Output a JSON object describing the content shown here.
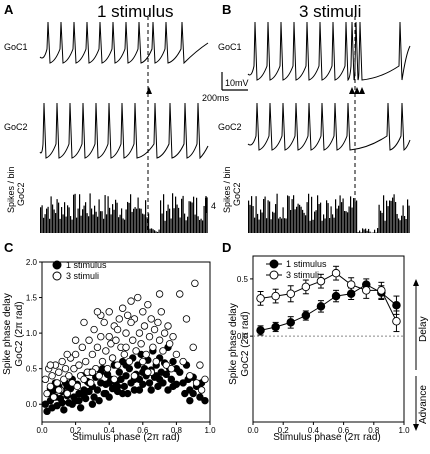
{
  "panels": {
    "A": {
      "label": "A",
      "title": "1 stimulus"
    },
    "B": {
      "label": "B",
      "title": "3 stimuli"
    },
    "C": {
      "label": "C"
    },
    "D": {
      "label": "D"
    }
  },
  "trace_labels": {
    "goc1": "GoC1",
    "goc2": "GoC2",
    "spikes_a": "Spikes / bin",
    "spikes_b": "GoC2"
  },
  "scale_bars": {
    "voltage": "10mV",
    "time": "200ms",
    "count": "4"
  },
  "colors": {
    "trace": "#000000",
    "open_marker": "#ffffff",
    "filled_marker": "#000000",
    "zero_line": "#888888"
  },
  "chart_data": [
    {
      "panel": "C",
      "type": "scatter",
      "xlabel": "Stimulus phase (2π rad)",
      "ylabel_line1": "Spike phase delay",
      "ylabel_line2": "GoC2 (2π rad)",
      "xlim": [
        0.0,
        1.0
      ],
      "ylim": [
        -0.25,
        2.0
      ],
      "xticks": [
        "0.0",
        "0.2",
        "0.4",
        "0.6",
        "0.8",
        "1.0"
      ],
      "yticks": [
        "0.0",
        "0.5",
        "1.0",
        "1.5",
        "2.0"
      ],
      "legend_placement": "top-left",
      "series": [
        {
          "name": "1 stimulus",
          "marker": "filled",
          "points": [
            [
              0.02,
              0.0
            ],
            [
              0.03,
              -0.1
            ],
            [
              0.04,
              0.15
            ],
            [
              0.05,
              0.05
            ],
            [
              0.06,
              -0.05
            ],
            [
              0.07,
              0.2
            ],
            [
              0.08,
              0.1
            ],
            [
              0.09,
              -0.02
            ],
            [
              0.1,
              0.25
            ],
            [
              0.11,
              0.08
            ],
            [
              0.12,
              0.18
            ],
            [
              0.13,
              -0.08
            ],
            [
              0.14,
              0.3
            ],
            [
              0.15,
              0.12
            ],
            [
              0.16,
              0.02
            ],
            [
              0.17,
              0.22
            ],
            [
              0.18,
              0.35
            ],
            [
              0.19,
              0.1
            ],
            [
              0.2,
              0.05
            ],
            [
              0.21,
              0.28
            ],
            [
              0.22,
              0.15
            ],
            [
              0.23,
              -0.05
            ],
            [
              0.24,
              0.4
            ],
            [
              0.25,
              0.2
            ],
            [
              0.26,
              0.08
            ],
            [
              0.27,
              0.32
            ],
            [
              0.28,
              0.18
            ],
            [
              0.29,
              0.45
            ],
            [
              0.3,
              0.25
            ],
            [
              0.31,
              0.1
            ],
            [
              0.32,
              0.38
            ],
            [
              0.33,
              0.2
            ],
            [
              0.34,
              0.05
            ],
            [
              0.35,
              0.3
            ],
            [
              0.36,
              0.5
            ],
            [
              0.37,
              0.15
            ],
            [
              0.38,
              0.28
            ],
            [
              0.39,
              0.42
            ],
            [
              0.4,
              0.1
            ],
            [
              0.41,
              0.35
            ],
            [
              0.42,
              0.22
            ],
            [
              0.43,
              0.55
            ],
            [
              0.44,
              0.3
            ],
            [
              0.45,
              0.18
            ],
            [
              0.46,
              0.45
            ],
            [
              0.47,
              0.35
            ],
            [
              0.48,
              0.6
            ],
            [
              0.49,
              0.25
            ],
            [
              0.5,
              0.4
            ],
            [
              0.51,
              0.15
            ],
            [
              0.52,
              0.5
            ],
            [
              0.53,
              0.3
            ],
            [
              0.54,
              0.65
            ],
            [
              0.55,
              0.2
            ],
            [
              0.56,
              0.42
            ],
            [
              0.57,
              0.55
            ],
            [
              0.58,
              0.35
            ],
            [
              0.59,
              0.7
            ],
            [
              0.6,
              0.28
            ],
            [
              0.61,
              0.5
            ],
            [
              0.62,
              0.4
            ],
            [
              0.63,
              0.62
            ],
            [
              0.64,
              0.3
            ],
            [
              0.65,
              0.48
            ],
            [
              0.66,
              0.75
            ],
            [
              0.67,
              0.38
            ],
            [
              0.68,
              0.55
            ],
            [
              0.69,
              0.25
            ],
            [
              0.7,
              0.65
            ],
            [
              0.71,
              0.45
            ],
            [
              0.72,
              0.3
            ],
            [
              0.73,
              0.58
            ],
            [
              0.74,
              0.42
            ],
            [
              0.75,
              0.2
            ],
            [
              0.76,
              0.5
            ],
            [
              0.77,
              0.35
            ],
            [
              0.78,
              0.6
            ],
            [
              0.8,
              0.28
            ],
            [
              0.82,
              0.45
            ],
            [
              0.84,
              0.3
            ],
            [
              0.85,
              0.15
            ],
            [
              0.87,
              0.35
            ],
            [
              0.88,
              0.2
            ],
            [
              0.9,
              0.38
            ],
            [
              0.92,
              0.25
            ],
            [
              0.94,
              0.1
            ],
            [
              0.95,
              0.3
            ],
            [
              0.97,
              0.05
            ],
            [
              0.15,
              0.25
            ],
            [
              0.25,
              0.12
            ],
            [
              0.35,
              0.45
            ],
            [
              0.45,
              0.25
            ],
            [
              0.55,
              0.35
            ],
            [
              0.65,
              0.2
            ],
            [
              0.08,
              0.3
            ],
            [
              0.12,
              0.02
            ],
            [
              0.22,
              0.05
            ],
            [
              0.3,
              0.0
            ],
            [
              0.4,
              0.3
            ],
            [
              0.5,
              0.55
            ],
            [
              0.6,
              0.45
            ],
            [
              0.7,
              0.35
            ],
            [
              0.75,
              0.8
            ],
            [
              0.8,
              0.5
            ],
            [
              0.86,
              0.55
            ],
            [
              0.9,
              0.15
            ],
            [
              0.05,
              0.22
            ],
            [
              0.18,
              0.0
            ],
            [
              0.28,
              0.3
            ],
            [
              0.38,
              0.15
            ],
            [
              0.48,
              0.15
            ],
            [
              0.58,
              0.2
            ],
            [
              0.68,
              0.4
            ],
            [
              0.78,
              0.25
            ],
            [
              0.88,
              0.05
            ]
          ]
        },
        {
          "name": "3 stimuli",
          "marker": "open",
          "points": [
            [
              0.02,
              0.35
            ],
            [
              0.03,
              0.15
            ],
            [
              0.04,
              0.5
            ],
            [
              0.05,
              0.25
            ],
            [
              0.06,
              0.4
            ],
            [
              0.07,
              0.1
            ],
            [
              0.08,
              0.55
            ],
            [
              0.09,
              0.3
            ],
            [
              0.1,
              0.45
            ],
            [
              0.11,
              0.2
            ],
            [
              0.12,
              0.6
            ],
            [
              0.13,
              0.35
            ],
            [
              0.14,
              0.5
            ],
            [
              0.15,
              0.15
            ],
            [
              0.16,
              0.4
            ],
            [
              0.17,
              0.65
            ],
            [
              0.18,
              0.3
            ],
            [
              0.19,
              0.5
            ],
            [
              0.2,
              0.7
            ],
            [
              0.21,
              0.25
            ],
            [
              0.22,
              0.55
            ],
            [
              0.23,
              0.4
            ],
            [
              0.24,
              0.8
            ],
            [
              0.25,
              0.35
            ],
            [
              0.26,
              0.6
            ],
            [
              0.27,
              0.45
            ],
            [
              0.28,
              0.9
            ],
            [
              0.29,
              0.3
            ],
            [
              0.3,
              0.7
            ],
            [
              0.31,
              1.05
            ],
            [
              0.32,
              0.5
            ],
            [
              0.33,
              0.8
            ],
            [
              0.34,
              0.4
            ],
            [
              0.35,
              0.95
            ],
            [
              0.36,
              0.6
            ],
            [
              0.37,
              1.15
            ],
            [
              0.38,
              0.75
            ],
            [
              0.39,
              0.5
            ],
            [
              0.4,
              1.3
            ],
            [
              0.41,
              0.85
            ],
            [
              0.42,
              0.65
            ],
            [
              0.43,
              1.1
            ],
            [
              0.44,
              0.9
            ],
            [
              0.45,
              0.55
            ],
            [
              0.46,
              1.2
            ],
            [
              0.47,
              0.8
            ],
            [
              0.48,
              1.35
            ],
            [
              0.49,
              0.7
            ],
            [
              0.5,
              1.0
            ],
            [
              0.51,
              1.25
            ],
            [
              0.52,
              0.6
            ],
            [
              0.53,
              1.45
            ],
            [
              0.54,
              0.9
            ],
            [
              0.55,
              1.2
            ],
            [
              0.56,
              0.75
            ],
            [
              0.57,
              1.5
            ],
            [
              0.58,
              1.0
            ],
            [
              0.59,
              0.85
            ],
            [
              0.6,
              1.3
            ],
            [
              0.61,
              1.1
            ],
            [
              0.62,
              0.7
            ],
            [
              0.63,
              1.4
            ],
            [
              0.64,
              0.95
            ],
            [
              0.65,
              1.2
            ],
            [
              0.66,
              0.8
            ],
            [
              0.67,
              1.05
            ],
            [
              0.68,
              0.6
            ],
            [
              0.69,
              1.15
            ],
            [
              0.7,
              0.9
            ],
            [
              0.71,
              1.3
            ],
            [
              0.72,
              0.75
            ],
            [
              0.73,
              1.0
            ],
            [
              0.74,
              0.55
            ],
            [
              0.75,
              1.1
            ],
            [
              0.76,
              0.85
            ],
            [
              0.77,
              0.5
            ],
            [
              0.78,
              0.95
            ],
            [
              0.8,
              0.7
            ],
            [
              0.82,
              1.55
            ],
            [
              0.84,
              0.6
            ],
            [
              0.86,
              1.2
            ],
            [
              0.88,
              0.4
            ],
            [
              0.9,
              0.8
            ],
            [
              0.91,
              1.7
            ],
            [
              0.92,
              0.3
            ],
            [
              0.94,
              0.55
            ],
            [
              0.95,
              0.2
            ],
            [
              0.97,
              0.35
            ],
            [
              0.25,
              1.15
            ],
            [
              0.3,
              0.45
            ],
            [
              0.35,
              1.25
            ],
            [
              0.45,
              1.05
            ],
            [
              0.55,
              0.4
            ],
            [
              0.6,
              0.6
            ],
            [
              0.65,
              0.45
            ],
            [
              0.7,
              1.55
            ],
            [
              0.4,
              0.95
            ],
            [
              0.5,
              0.8
            ],
            [
              0.2,
              0.9
            ],
            [
              0.15,
              0.7
            ],
            [
              0.1,
              0.2
            ],
            [
              0.05,
              0.55
            ],
            [
              0.33,
              1.3
            ],
            [
              0.43,
              0.35
            ],
            [
              0.53,
              1.15
            ],
            [
              0.63,
              0.45
            ]
          ]
        }
      ]
    },
    {
      "panel": "D",
      "type": "line",
      "xlabel": "Stimulus phase (2π rad)",
      "ylabel_line1": "Spike phase delay",
      "ylabel_line2": "GoC2 (2π rad)",
      "xlim": [
        0.0,
        1.0
      ],
      "ylim": [
        -0.75,
        0.7
      ],
      "xticks": [
        "0.0",
        "0.2",
        "0.4",
        "0.6",
        "0.8",
        "1.0"
      ],
      "yticks": [
        "0.0",
        "0.5"
      ],
      "legend_placement": "top-left",
      "right_labels": {
        "delay": "Delay",
        "advance": "Advance"
      },
      "x": [
        0.05,
        0.15,
        0.25,
        0.35,
        0.45,
        0.55,
        0.65,
        0.75,
        0.85,
        0.95
      ],
      "series": [
        {
          "name": "1 stimulus",
          "marker": "filled",
          "values": [
            0.05,
            0.08,
            0.12,
            0.18,
            0.26,
            0.35,
            0.37,
            0.45,
            0.38,
            0.27
          ],
          "errors": [
            0.04,
            0.04,
            0.05,
            0.04,
            0.05,
            0.05,
            0.05,
            0.05,
            0.06,
            0.08
          ]
        },
        {
          "name": "3 stimuli",
          "marker": "open",
          "values": [
            0.33,
            0.35,
            0.37,
            0.43,
            0.48,
            0.55,
            0.45,
            0.4,
            0.4,
            0.13
          ],
          "errors": [
            0.06,
            0.06,
            0.07,
            0.06,
            0.06,
            0.06,
            0.06,
            0.07,
            0.07,
            0.09
          ]
        }
      ]
    }
  ]
}
